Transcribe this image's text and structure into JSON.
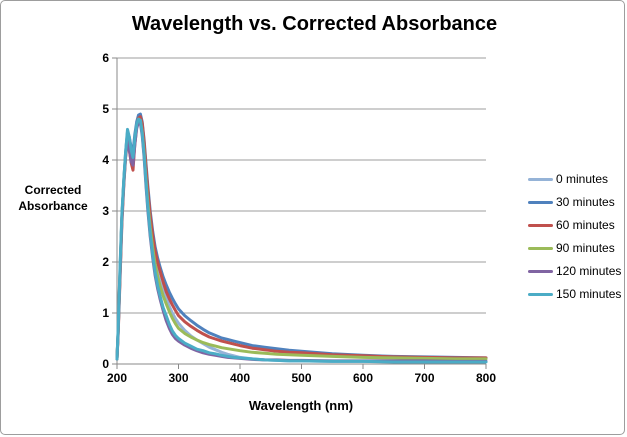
{
  "colors": {
    "background": "#FFFFFF",
    "frame_border": "#9D9D9D",
    "gridline": "#9C9C9C",
    "axis": "#898989",
    "text": "#000000"
  },
  "chart_data": {
    "type": "line",
    "title": "Wavelength vs. Corrected Absorbance",
    "xlabel": "Wavelength (nm)",
    "ylabel": "Corrected Absorbance",
    "xlim": [
      200,
      800
    ],
    "ylim": [
      0,
      6
    ],
    "xticks": [
      200,
      300,
      400,
      500,
      600,
      700,
      800
    ],
    "yticks": [
      0,
      1,
      2,
      3,
      4,
      5,
      6
    ],
    "grid": "horizontal-only",
    "legend_position": "right",
    "x": [
      200,
      202,
      205,
      208,
      211,
      214,
      217,
      220,
      223,
      226,
      229,
      232,
      235,
      238,
      241,
      244,
      247,
      250,
      254,
      258,
      262,
      266,
      270,
      275,
      280,
      285,
      290,
      295,
      300,
      310,
      320,
      330,
      340,
      350,
      360,
      370,
      380,
      390,
      400,
      420,
      440,
      460,
      480,
      500,
      550,
      600,
      650,
      700,
      750,
      800
    ],
    "series": [
      {
        "name": "0 minutes",
        "color": "#95B3D7",
        "values": [
          0.1,
          0.7,
          1.9,
          2.9,
          3.55,
          4.1,
          4.45,
          4.3,
          4.1,
          4.05,
          4.4,
          4.7,
          4.85,
          4.8,
          4.55,
          4.15,
          3.65,
          3.2,
          2.7,
          2.3,
          2.0,
          1.78,
          1.6,
          1.44,
          1.3,
          1.13,
          1.0,
          0.89,
          0.8,
          0.66,
          0.55,
          0.47,
          0.4,
          0.33,
          0.28,
          0.23,
          0.19,
          0.16,
          0.13,
          0.1,
          0.08,
          0.07,
          0.06,
          0.06,
          0.05,
          0.05,
          0.05,
          0.05,
          0.05,
          0.05
        ]
      },
      {
        "name": "30 minutes",
        "color": "#4F81BD",
        "values": [
          0.1,
          0.65,
          1.8,
          2.85,
          3.6,
          4.15,
          4.55,
          4.45,
          4.25,
          4.15,
          4.5,
          4.75,
          4.88,
          4.9,
          4.75,
          4.4,
          3.95,
          3.5,
          3.0,
          2.6,
          2.3,
          2.08,
          1.9,
          1.71,
          1.55,
          1.41,
          1.29,
          1.18,
          1.08,
          0.95,
          0.85,
          0.76,
          0.68,
          0.61,
          0.56,
          0.51,
          0.48,
          0.45,
          0.42,
          0.36,
          0.33,
          0.3,
          0.27,
          0.25,
          0.2,
          0.17,
          0.15,
          0.14,
          0.13,
          0.12
        ]
      },
      {
        "name": "60 minutes",
        "color": "#C0504D",
        "values": [
          0.1,
          0.6,
          1.7,
          2.75,
          3.5,
          4.05,
          4.4,
          4.2,
          3.95,
          3.8,
          4.3,
          4.65,
          4.82,
          4.85,
          4.72,
          4.35,
          3.88,
          3.42,
          2.92,
          2.52,
          2.22,
          2.0,
          1.82,
          1.61,
          1.42,
          1.28,
          1.16,
          1.05,
          0.95,
          0.83,
          0.74,
          0.66,
          0.59,
          0.53,
          0.49,
          0.45,
          0.42,
          0.39,
          0.36,
          0.31,
          0.28,
          0.25,
          0.23,
          0.22,
          0.18,
          0.16,
          0.14,
          0.13,
          0.12,
          0.12
        ]
      },
      {
        "name": "90 minutes",
        "color": "#9BBB59",
        "values": [
          0.1,
          0.68,
          1.85,
          2.88,
          3.58,
          4.1,
          4.42,
          4.25,
          4.0,
          3.95,
          4.35,
          4.68,
          4.8,
          4.78,
          4.55,
          4.15,
          3.65,
          3.18,
          2.68,
          2.28,
          1.96,
          1.72,
          1.53,
          1.34,
          1.18,
          1.03,
          0.9,
          0.79,
          0.7,
          0.6,
          0.53,
          0.47,
          0.42,
          0.38,
          0.35,
          0.32,
          0.3,
          0.28,
          0.26,
          0.23,
          0.21,
          0.19,
          0.18,
          0.17,
          0.15,
          0.13,
          0.12,
          0.11,
          0.1,
          0.1
        ]
      },
      {
        "name": "120 minutes",
        "color": "#8064A2",
        "values": [
          0.1,
          0.66,
          1.82,
          2.86,
          3.55,
          4.08,
          4.4,
          4.2,
          3.98,
          3.9,
          4.3,
          4.62,
          4.75,
          4.72,
          4.48,
          4.05,
          3.52,
          3.02,
          2.5,
          2.08,
          1.74,
          1.48,
          1.27,
          1.05,
          0.85,
          0.7,
          0.58,
          0.5,
          0.45,
          0.37,
          0.31,
          0.26,
          0.22,
          0.19,
          0.17,
          0.15,
          0.13,
          0.12,
          0.11,
          0.09,
          0.08,
          0.08,
          0.07,
          0.07,
          0.06,
          0.06,
          0.06,
          0.06,
          0.05,
          0.05
        ]
      },
      {
        "name": "150 minutes",
        "color": "#4BACC6",
        "values": [
          0.1,
          0.72,
          1.95,
          2.95,
          3.62,
          4.15,
          4.6,
          4.45,
          4.2,
          4.05,
          4.42,
          4.7,
          4.8,
          4.78,
          4.52,
          4.1,
          3.58,
          3.08,
          2.56,
          2.14,
          1.8,
          1.54,
          1.33,
          1.11,
          0.95,
          0.78,
          0.65,
          0.56,
          0.5,
          0.41,
          0.35,
          0.29,
          0.26,
          0.22,
          0.2,
          0.17,
          0.15,
          0.13,
          0.12,
          0.1,
          0.08,
          0.07,
          0.06,
          0.06,
          0.05,
          0.05,
          0.04,
          0.04,
          0.04,
          0.04
        ]
      }
    ]
  }
}
